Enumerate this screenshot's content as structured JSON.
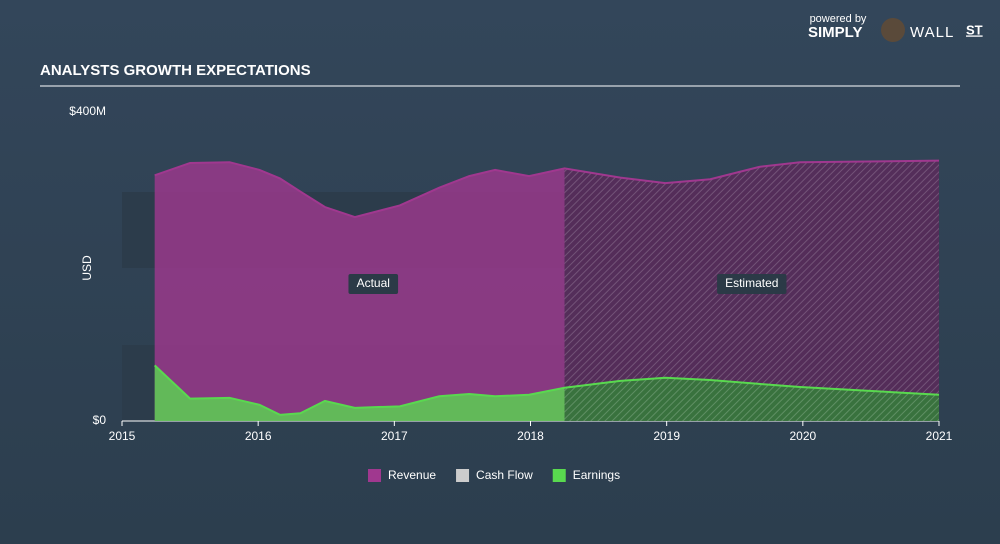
{
  "brand": {
    "powered": "powered by",
    "name_a": "SIMPLY",
    "name_b": "WALL",
    "name_c": "ST"
  },
  "chart_data": {
    "type": "area",
    "title": "ANALYSTS GROWTH EXPECTATIONS",
    "ylabel": "USD",
    "x": [
      2015.24,
      2015.5,
      2015.79,
      2016.01,
      2016.16,
      2016.31,
      2016.49,
      2016.71,
      2017.04,
      2017.33,
      2017.55,
      2017.74,
      2017.99,
      2018.25,
      2018.66,
      2018.99,
      2019.32,
      2019.68,
      2019.98,
      2021.0
    ],
    "series": [
      {
        "name": "Revenue",
        "color": "#a0388f",
        "values": [
          318,
          334,
          335,
          325,
          314,
          297,
          277,
          264,
          279,
          302,
          317,
          325,
          317,
          327,
          315,
          308,
          313,
          329,
          335,
          337
        ]
      },
      {
        "name": "Cash Flow",
        "color": "#cccccc",
        "values": [
          null,
          null,
          null,
          null,
          null,
          null,
          null,
          null,
          null,
          null,
          null,
          null,
          null,
          null,
          null,
          null,
          null,
          null,
          null,
          null
        ]
      },
      {
        "name": "Earnings",
        "color": "#59d94f",
        "values": [
          72,
          29,
          30,
          21,
          8,
          10,
          26,
          17,
          19,
          32,
          35,
          32,
          34,
          43,
          52,
          56,
          53,
          48,
          44,
          34
        ]
      }
    ],
    "forecast_start": 2018.25,
    "annotations": [
      "Actual",
      "Estimated"
    ],
    "xlim": [
      2015,
      2021
    ],
    "xticks": [
      2015,
      2016,
      2017,
      2018,
      2019,
      2020,
      2021
    ],
    "ylim": [
      0,
      400
    ],
    "yticks": [
      {
        "value": 0,
        "label": "$0"
      },
      {
        "value": 400,
        "label": "$400M"
      }
    ],
    "legend": "bottom"
  }
}
